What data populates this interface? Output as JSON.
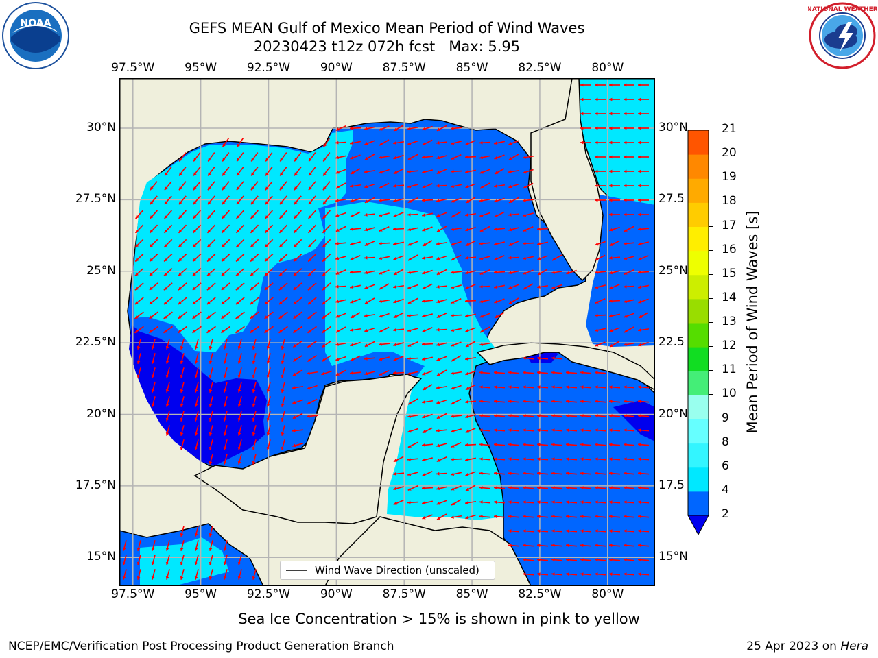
{
  "title": {
    "line1": "GEFS MEAN Gulf of Mexico Mean Period of Wind Waves",
    "line2": "20230423 t12z 072h fcst   Max: 5.95"
  },
  "logos": {
    "left": "NOAA",
    "left_ring_text": "NATIONAL OCEANIC AND ATMOSPHERIC ADMINISTRATION · U.S. DEPARTMENT OF COMMERCE",
    "right_ring_text": "NATIONAL WEATHER SERVICE"
  },
  "axes": {
    "lon_labels": [
      "97.5°W",
      "95°W",
      "92.5°W",
      "90°W",
      "87.5°W",
      "85°W",
      "82.5°W",
      "80°W"
    ],
    "lat_labels_left": [
      "30°N",
      "27.5°N",
      "25°N",
      "22.5°N",
      "20°N",
      "17.5°N",
      "15°N"
    ],
    "lat_labels_right": [
      "30°N",
      "27.5",
      "25°N",
      "22.5",
      "20°N",
      "17.5",
      "15°N"
    ],
    "lon_values": [
      -97.5,
      -95,
      -92.5,
      -90,
      -87.5,
      -85,
      -82.5,
      -80
    ],
    "lat_values": [
      30,
      27.5,
      25,
      22.5,
      20,
      17.5,
      15
    ],
    "lon_range": [
      -98,
      -78.25
    ],
    "lat_range": [
      14,
      31.75
    ],
    "grid": true
  },
  "legend": {
    "label": "Wind Wave Direction (unscaled)"
  },
  "colorbar": {
    "label": "Mean Period of Wind Waves [s]",
    "ticks": [
      "2",
      "4",
      "6",
      "8",
      "9",
      "10",
      "11",
      "12",
      "13",
      "14",
      "15",
      "16",
      "17",
      "18",
      "19",
      "20",
      "21"
    ],
    "levels": [
      2,
      4,
      6,
      8,
      9,
      10,
      11,
      12,
      13,
      14,
      15,
      16,
      17,
      18,
      19,
      20,
      21
    ],
    "colors": [
      "#0066ff",
      "#00e8ff",
      "#33f5ff",
      "#66ffff",
      "#99ffee",
      "#44ee77",
      "#11dd22",
      "#55dd00",
      "#99dd00",
      "#ccee00",
      "#eeff00",
      "#ffee00",
      "#ffcc00",
      "#ffaa00",
      "#ff8800",
      "#ff5500",
      "#ff2200",
      "#ff0000"
    ],
    "under_color": "#0000ee"
  },
  "note": "Sea Ice Concentration > 15% is shown in pink to yellow",
  "footer": {
    "left": "NCEP/EMC/Verification Post Processing Product Generation Branch",
    "date": "25 Apr 2023 on ",
    "machine": "Hera"
  },
  "colors": {
    "land": "#efefdc",
    "period_lt2": "#0000ee",
    "period_2_4": "#0066ff",
    "period_4_6": "#00e8ff",
    "arrow": "#ff0000"
  }
}
